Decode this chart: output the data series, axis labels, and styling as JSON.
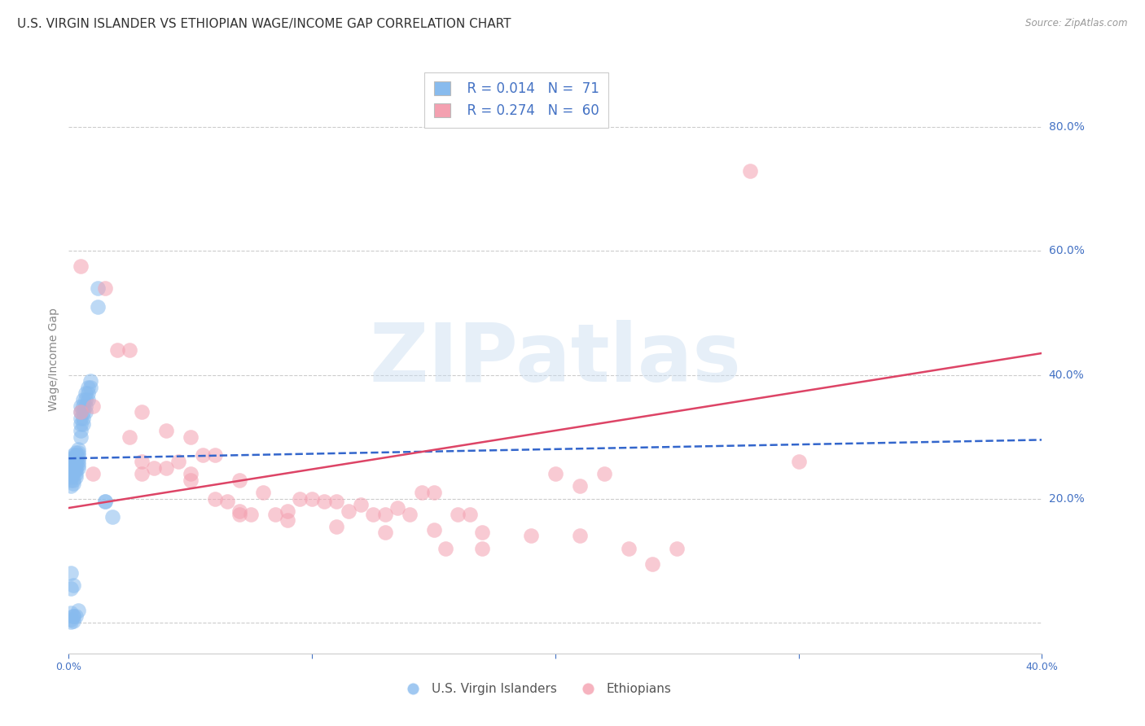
{
  "title": "U.S. VIRGIN ISLANDER VS ETHIOPIAN WAGE/INCOME GAP CORRELATION CHART",
  "source": "Source: ZipAtlas.com",
  "ylabel": "Wage/Income Gap",
  "xlim": [
    0.0,
    0.4
  ],
  "ylim": [
    -0.05,
    0.9
  ],
  "yticks": [
    0.0,
    0.2,
    0.4,
    0.6,
    0.8
  ],
  "ytick_labels": [
    "",
    "20.0%",
    "40.0%",
    "60.0%",
    "80.0%"
  ],
  "xtick_positions": [
    0.0,
    0.1,
    0.2,
    0.3,
    0.4
  ],
  "xtick_labels": [
    "0.0%",
    "",
    "",
    "",
    "40.0%"
  ],
  "blue_color": "#88bbee",
  "pink_color": "#f4a0b0",
  "blue_line_color": "#3366cc",
  "pink_line_color": "#dd4466",
  "legend_label_blue": "U.S. Virgin Islanders",
  "legend_label_pink": "Ethiopians",
  "blue_trend_x": [
    0.0,
    0.4
  ],
  "blue_trend_y": [
    0.265,
    0.295
  ],
  "pink_trend_x": [
    0.0,
    0.4
  ],
  "pink_trend_y": [
    0.185,
    0.435
  ],
  "grid_color": "#cccccc",
  "background_color": "#ffffff",
  "title_fontsize": 11,
  "tick_fontsize": 9,
  "tick_color": "#4472c4",
  "axis_label_color": "#888888",
  "blue_x": [
    0.001,
    0.001,
    0.001,
    0.001,
    0.001,
    0.001,
    0.001,
    0.001,
    0.001,
    0.001,
    0.002,
    0.002,
    0.002,
    0.002,
    0.002,
    0.002,
    0.002,
    0.002,
    0.002,
    0.002,
    0.003,
    0.003,
    0.003,
    0.003,
    0.003,
    0.003,
    0.003,
    0.003,
    0.003,
    0.004,
    0.004,
    0.004,
    0.004,
    0.004,
    0.004,
    0.004,
    0.005,
    0.005,
    0.005,
    0.005,
    0.005,
    0.005,
    0.006,
    0.006,
    0.006,
    0.006,
    0.006,
    0.007,
    0.007,
    0.007,
    0.007,
    0.008,
    0.008,
    0.008,
    0.009,
    0.009,
    0.012,
    0.012,
    0.015,
    0.015,
    0.018,
    0.002,
    0.003,
    0.001,
    0.004,
    0.002,
    0.001,
    0.001,
    0.001,
    0.002
  ],
  "blue_y": [
    0.265,
    0.255,
    0.26,
    0.25,
    0.245,
    0.24,
    0.235,
    0.23,
    0.22,
    0.005,
    0.27,
    0.265,
    0.26,
    0.255,
    0.25,
    0.245,
    0.24,
    0.23,
    0.225,
    0.01,
    0.275,
    0.27,
    0.265,
    0.26,
    0.255,
    0.25,
    0.245,
    0.24,
    0.235,
    0.28,
    0.275,
    0.27,
    0.265,
    0.26,
    0.255,
    0.25,
    0.35,
    0.34,
    0.33,
    0.32,
    0.31,
    0.3,
    0.36,
    0.35,
    0.34,
    0.33,
    0.32,
    0.37,
    0.36,
    0.35,
    0.34,
    0.38,
    0.37,
    0.36,
    0.39,
    0.38,
    0.54,
    0.51,
    0.195,
    0.195,
    0.17,
    0.01,
    0.01,
    0.015,
    0.02,
    0.06,
    0.055,
    0.08,
    0.001,
    0.002
  ],
  "pink_x": [
    0.005,
    0.005,
    0.01,
    0.01,
    0.015,
    0.02,
    0.025,
    0.025,
    0.03,
    0.03,
    0.035,
    0.04,
    0.04,
    0.045,
    0.05,
    0.05,
    0.055,
    0.06,
    0.06,
    0.065,
    0.07,
    0.07,
    0.075,
    0.08,
    0.085,
    0.09,
    0.095,
    0.1,
    0.105,
    0.11,
    0.115,
    0.12,
    0.125,
    0.13,
    0.135,
    0.14,
    0.145,
    0.15,
    0.155,
    0.16,
    0.165,
    0.17,
    0.2,
    0.21,
    0.22,
    0.23,
    0.24,
    0.25,
    0.03,
    0.05,
    0.07,
    0.09,
    0.11,
    0.13,
    0.15,
    0.17,
    0.19,
    0.21,
    0.28,
    0.3
  ],
  "pink_y": [
    0.575,
    0.34,
    0.35,
    0.24,
    0.54,
    0.44,
    0.44,
    0.3,
    0.34,
    0.26,
    0.25,
    0.31,
    0.25,
    0.26,
    0.3,
    0.24,
    0.27,
    0.27,
    0.2,
    0.195,
    0.23,
    0.175,
    0.175,
    0.21,
    0.175,
    0.18,
    0.2,
    0.2,
    0.195,
    0.195,
    0.18,
    0.19,
    0.175,
    0.175,
    0.185,
    0.175,
    0.21,
    0.21,
    0.12,
    0.175,
    0.175,
    0.12,
    0.24,
    0.22,
    0.24,
    0.12,
    0.095,
    0.12,
    0.24,
    0.23,
    0.18,
    0.165,
    0.155,
    0.145,
    0.15,
    0.145,
    0.14,
    0.14,
    0.73,
    0.26
  ]
}
